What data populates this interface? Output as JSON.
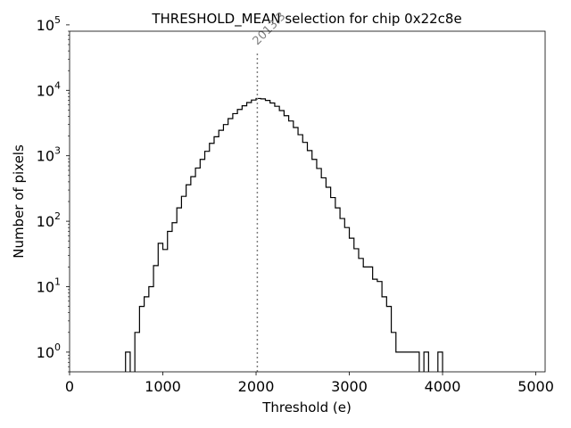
{
  "chart_data": {
    "type": "histogram",
    "title": "THRESHOLD_MEAN selection for chip 0x22c8e",
    "xlabel": "Threshold (e)",
    "ylabel": "Number of pixels",
    "xlim": [
      0,
      5100
    ],
    "ylim": [
      0.5,
      80000
    ],
    "yscale": "log",
    "bin_width": 50,
    "x_ticks": [
      {
        "value": 0,
        "label": "0"
      },
      {
        "value": 1000,
        "label": "1000"
      },
      {
        "value": 2000,
        "label": "2000"
      },
      {
        "value": 3000,
        "label": "3000"
      },
      {
        "value": 4000,
        "label": "4000"
      },
      {
        "value": 5000,
        "label": "5000"
      }
    ],
    "y_ticks": [
      {
        "value": 1,
        "base": "10",
        "exp": "0"
      },
      {
        "value": 10,
        "base": "10",
        "exp": "1"
      },
      {
        "value": 100,
        "base": "10",
        "exp": "2"
      },
      {
        "value": 1000,
        "base": "10",
        "exp": "3"
      },
      {
        "value": 10000,
        "base": "10",
        "exp": "4"
      },
      {
        "value": 100000,
        "base": "10",
        "exp": "5"
      }
    ],
    "bins": [
      {
        "x": 600,
        "count": 1
      },
      {
        "x": 650,
        "count": 0
      },
      {
        "x": 700,
        "count": 2
      },
      {
        "x": 750,
        "count": 5
      },
      {
        "x": 800,
        "count": 7
      },
      {
        "x": 850,
        "count": 10
      },
      {
        "x": 900,
        "count": 21
      },
      {
        "x": 950,
        "count": 46
      },
      {
        "x": 1000,
        "count": 37
      },
      {
        "x": 1050,
        "count": 70
      },
      {
        "x": 1100,
        "count": 95
      },
      {
        "x": 1150,
        "count": 160
      },
      {
        "x": 1200,
        "count": 240
      },
      {
        "x": 1250,
        "count": 360
      },
      {
        "x": 1300,
        "count": 480
      },
      {
        "x": 1350,
        "count": 650
      },
      {
        "x": 1400,
        "count": 880
      },
      {
        "x": 1450,
        "count": 1170
      },
      {
        "x": 1500,
        "count": 1550
      },
      {
        "x": 1550,
        "count": 1950
      },
      {
        "x": 1600,
        "count": 2450
      },
      {
        "x": 1650,
        "count": 3000
      },
      {
        "x": 1700,
        "count": 3700
      },
      {
        "x": 1750,
        "count": 4400
      },
      {
        "x": 1800,
        "count": 5100
      },
      {
        "x": 1850,
        "count": 5800
      },
      {
        "x": 1900,
        "count": 6500
      },
      {
        "x": 1950,
        "count": 7100
      },
      {
        "x": 2000,
        "count": 7500
      },
      {
        "x": 2050,
        "count": 7400
      },
      {
        "x": 2100,
        "count": 7000
      },
      {
        "x": 2150,
        "count": 6400
      },
      {
        "x": 2200,
        "count": 5700
      },
      {
        "x": 2250,
        "count": 4900
      },
      {
        "x": 2300,
        "count": 4100
      },
      {
        "x": 2350,
        "count": 3400
      },
      {
        "x": 2400,
        "count": 2700
      },
      {
        "x": 2450,
        "count": 2100
      },
      {
        "x": 2500,
        "count": 1600
      },
      {
        "x": 2550,
        "count": 1200
      },
      {
        "x": 2600,
        "count": 880
      },
      {
        "x": 2650,
        "count": 640
      },
      {
        "x": 2700,
        "count": 460
      },
      {
        "x": 2750,
        "count": 330
      },
      {
        "x": 2800,
        "count": 230
      },
      {
        "x": 2850,
        "count": 160
      },
      {
        "x": 2900,
        "count": 110
      },
      {
        "x": 2950,
        "count": 80
      },
      {
        "x": 3000,
        "count": 55
      },
      {
        "x": 3050,
        "count": 38
      },
      {
        "x": 3100,
        "count": 27
      },
      {
        "x": 3150,
        "count": 20
      },
      {
        "x": 3200,
        "count": 20
      },
      {
        "x": 3250,
        "count": 13
      },
      {
        "x": 3300,
        "count": 12
      },
      {
        "x": 3350,
        "count": 7
      },
      {
        "x": 3400,
        "count": 5
      },
      {
        "x": 3450,
        "count": 2
      },
      {
        "x": 3500,
        "count": 1
      },
      {
        "x": 3550,
        "count": 1
      },
      {
        "x": 3600,
        "count": 1
      },
      {
        "x": 3650,
        "count": 1
      },
      {
        "x": 3700,
        "count": 1
      },
      {
        "x": 3750,
        "count": 0
      },
      {
        "x": 3800,
        "count": 1
      },
      {
        "x": 3850,
        "count": 0
      },
      {
        "x": 3900,
        "count": 0
      },
      {
        "x": 3950,
        "count": 1
      }
    ],
    "mean_line": {
      "value": 2013.3,
      "label": "2013.3",
      "style": "dotted",
      "color": "#808080",
      "top_count": 40000
    }
  }
}
